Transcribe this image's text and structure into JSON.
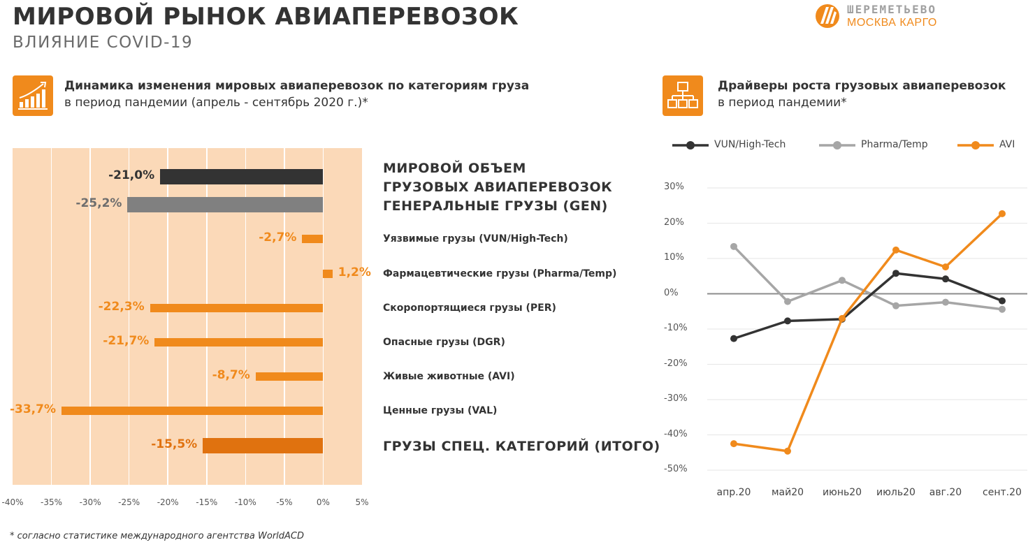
{
  "header": {
    "title": "МИРОВОЙ РЫНОК АВИАПЕРЕВОЗОК",
    "subtitle": "ВЛИЯНИЕ COVID-19"
  },
  "logo": {
    "name": "ШЕРЕМЕТЬЕВО",
    "sub": "МОСКВА КАРГО"
  },
  "colors": {
    "accent": "#f08a1c",
    "dark": "#333333",
    "gray": "#808080",
    "panel": "#fbd9b8",
    "pharma": "#a6a6a6",
    "total": "#e0720f"
  },
  "left_section": {
    "heading_line1": "Динамика изменения мировых авиаперевозок по категориям груза",
    "heading_line2": "в период пандемии (апрель - сентябрь 2020 г.)*",
    "icon": "growth-chart-icon"
  },
  "right_section": {
    "heading_line1": "Драйверы роста грузовых авиаперевозок",
    "heading_line2": "в период пандемии*",
    "icon": "hierarchy-icon"
  },
  "footnote": "* согласно статистике международного агентства WorldACD",
  "chart_data": [
    {
      "type": "bar",
      "orientation": "horizontal",
      "categories": [
        "МИРОВОЙ ОБЪЕМ ГРУЗОВЫХ АВИАПЕРЕВОЗОК",
        "ГЕНЕРАЛЬНЫЕ ГРУЗЫ (GEN)",
        "Уязвимые грузы (VUN/High-Tech)",
        "Фармацевтические грузы (Pharma/Temp)",
        "Скоропортящиеся грузы (PER)",
        "Опасные грузы (DGR)",
        "Живые животные (AVI)",
        "Ценные грузы (VAL)",
        "ГРУЗЫ СПЕЦ. КАТЕГОРИЙ (ИТОГО)"
      ],
      "category_lines": [
        [
          "МИРОВОЙ ОБЪЕМ",
          "ГРУЗОВЫХ АВИАПЕРЕВОЗОК"
        ],
        [
          "ГЕНЕРАЛЬНЫЕ ГРУЗЫ (GEN)"
        ],
        [
          "Уязвимые грузы (VUN/High-Tech)"
        ],
        [
          "Фармацевтические грузы (Pharma/Temp)"
        ],
        [
          "Скоропортящиеся грузы (PER)"
        ],
        [
          "Опасные грузы (DGR)"
        ],
        [
          "Живые животные (AVI)"
        ],
        [
          "Ценные грузы (VAL)"
        ],
        [
          "ГРУЗЫ СПЕЦ. КАТЕГОРИЙ (ИТОГО)"
        ]
      ],
      "values": [
        -21.0,
        -25.2,
        -2.7,
        1.2,
        -22.3,
        -21.7,
        -8.7,
        -33.7,
        -15.5
      ],
      "value_labels": [
        "-21,0%",
        "-25,2%",
        "-2,7%",
        "1,2%",
        "-22,3%",
        "-21,7%",
        "-8,7%",
        "-33,7%",
        "-15,5%"
      ],
      "bar_colors": [
        "#333333",
        "#808080",
        "#f08a1c",
        "#f08a1c",
        "#f08a1c",
        "#f08a1c",
        "#f08a1c",
        "#f08a1c",
        "#e0720f"
      ],
      "label_colors": [
        "#333333",
        "#6d6d6d",
        "#f08a1c",
        "#f08a1c",
        "#f08a1c",
        "#f08a1c",
        "#f08a1c",
        "#f08a1c",
        "#e0720f"
      ],
      "xlim": [
        -40,
        5
      ],
      "xticks": [
        "-40%",
        "-35%",
        "-30%",
        "-25%",
        "-20%",
        "-15%",
        "-10%",
        "-5%",
        "0%",
        "5%"
      ],
      "grid": true
    },
    {
      "type": "line",
      "x": [
        "апр.20",
        "май20",
        "июнь20",
        "июль20",
        "авг.20",
        "сент.20"
      ],
      "series": [
        {
          "name": "VUN/High-Tech",
          "color": "#333333",
          "values": [
            -12.7,
            -7.7,
            -7.2,
            5.8,
            4.2,
            -2.0
          ]
        },
        {
          "name": "Pharma/Temp",
          "color": "#a6a6a6",
          "values": [
            13.4,
            -2.2,
            3.8,
            -3.4,
            -2.4,
            -4.4
          ]
        },
        {
          "name": "AVI",
          "color": "#f08a1c",
          "values": [
            -42.5,
            -44.6,
            -7.0,
            12.4,
            7.6,
            22.7
          ]
        }
      ],
      "ylim": [
        -50,
        30
      ],
      "yticks": [
        "30%",
        "20%",
        "10%",
        "0%",
        "-10%",
        "-20%",
        "-30%",
        "-40%",
        "-50%"
      ],
      "legend": "top",
      "grid": true
    }
  ]
}
